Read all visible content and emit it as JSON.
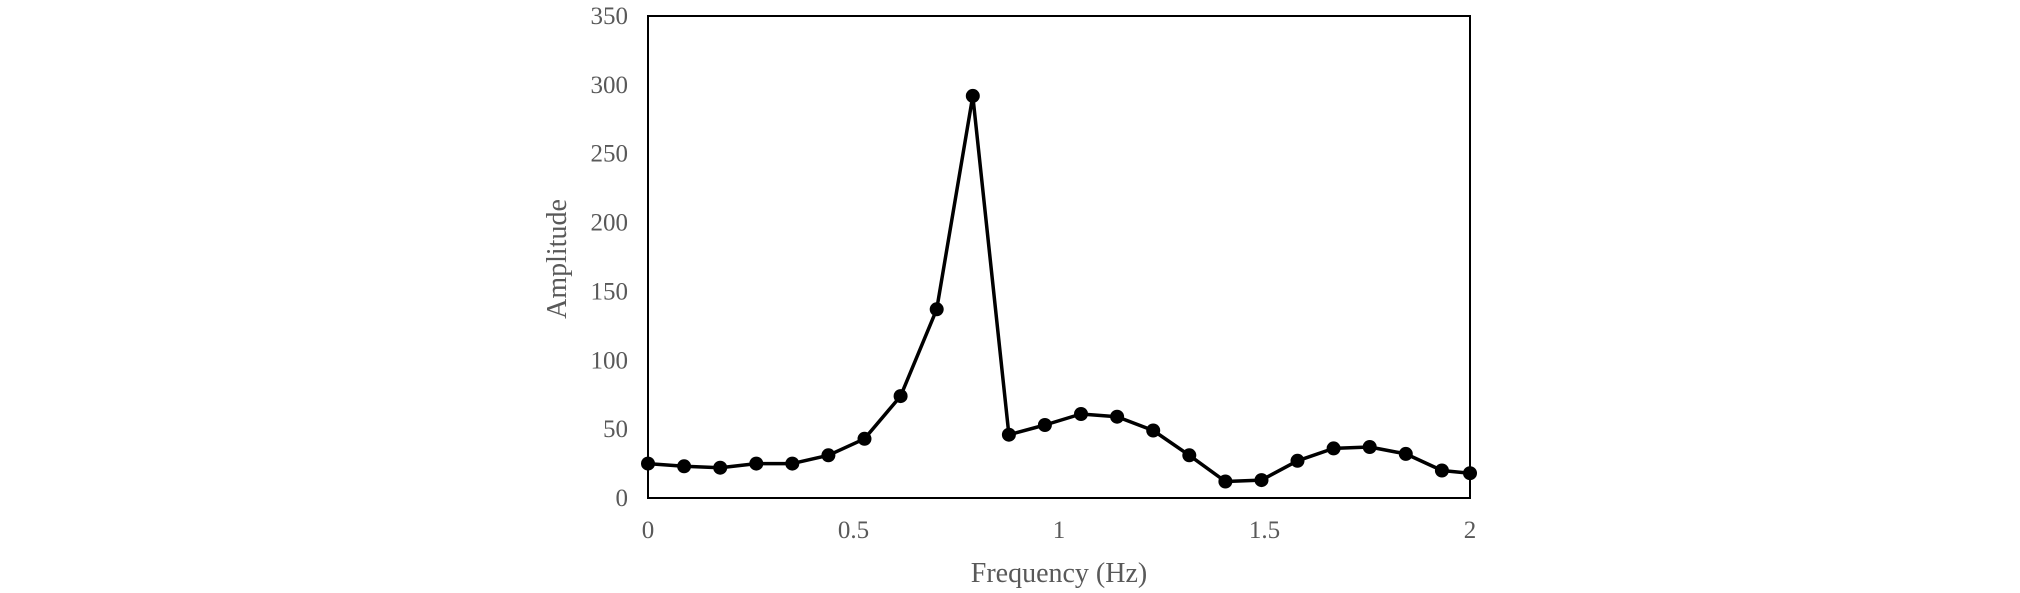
{
  "chart_data": {
    "type": "line",
    "title": "",
    "xlabel": "Frequency (Hz)",
    "ylabel": "Amplitude",
    "xlim": [
      0,
      2
    ],
    "ylim": [
      0,
      350
    ],
    "xticks": [
      0,
      0.5,
      1,
      1.5,
      2
    ],
    "xtick_labels": [
      "0",
      "0.5",
      "1",
      "1.5",
      "2"
    ],
    "yticks": [
      0,
      50,
      100,
      150,
      200,
      250,
      300,
      350
    ],
    "ytick_labels": [
      "0",
      "50",
      "100",
      "150",
      "200",
      "250",
      "300",
      "350"
    ],
    "grid": false,
    "legend": "none",
    "series": [
      {
        "color": "#000000",
        "marker": "circle",
        "x": [
          0,
          0.0878,
          0.1756,
          0.2634,
          0.3512,
          0.439,
          0.5268,
          0.6146,
          0.7024,
          0.7902,
          0.878,
          0.9658,
          1.0536,
          1.1414,
          1.2292,
          1.317,
          1.4048,
          1.4926,
          1.5804,
          1.6682,
          1.756,
          1.8438,
          1.9316,
          2.0
        ],
        "values": [
          25,
          23,
          22,
          25,
          25,
          31,
          43,
          74,
          137,
          292,
          46,
          53,
          61,
          59,
          49,
          31,
          12,
          13,
          27,
          36,
          37,
          32,
          20,
          18
        ]
      }
    ]
  }
}
